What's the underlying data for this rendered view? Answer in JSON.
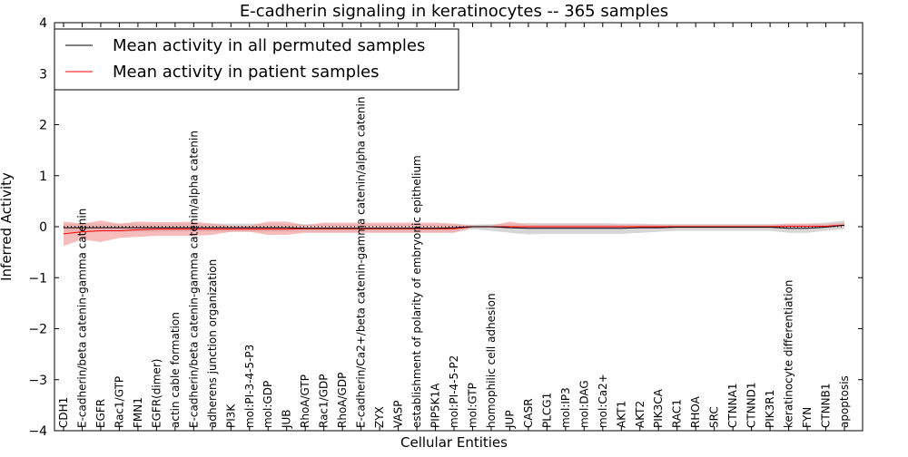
{
  "chart_data": {
    "type": "line",
    "title": "E-cadherin signaling in keratinocytes -- 365 samples",
    "xlabel": "Cellular Entities",
    "ylabel": "Inferred Activity",
    "ylim": [
      -4,
      4
    ],
    "yticks": [
      "−4",
      "−3",
      "−2",
      "−1",
      "0",
      "1",
      "2",
      "3",
      "4"
    ],
    "grid": false,
    "legend_position": "top-left",
    "categories": [
      "CDH1",
      "E-cadherin/beta catenin-gamma catenin",
      "EGFR",
      "Rac1/GTP",
      "FMN1",
      "EGFR(dimer)",
      "actin cable formation",
      "E-cadherin/beta catenin-gamma catenin/alpha catenin",
      "adherens junction organization",
      "PI3K",
      "mol:PI-3-4-5-P3",
      "mol:GDP",
      "JUB",
      "RhoA/GTP",
      "Rac1/GDP",
      "RhoA/GDP",
      "E-cadherin/Ca2+/beta catenin-gamma catenin/alpha catenin",
      "ZYX",
      "VASP",
      "establishment of polarity of embryonic epithelium",
      "PIP5K1A",
      "mol:PI-4-5-P2",
      "mol:GTP",
      "homophilic cell adhesion",
      "JUP",
      "CASR",
      "PLCG1",
      "mol:IP3",
      "mol:DAG",
      "mol:Ca2+",
      "AKT1",
      "AKT2",
      "PIK3CA",
      "RAC1",
      "RHOA",
      "SRC",
      "CTNNA1",
      "CTNND1",
      "PIK3R1",
      "keratinocyte differentiation",
      "FYN",
      "CTNNB1",
      "apoptosis"
    ],
    "series": [
      {
        "name": "Mean activity in all permuted samples",
        "color": "#000000",
        "band_color": "#c8c8c8",
        "values": [
          -0.02,
          -0.02,
          -0.02,
          -0.02,
          -0.02,
          -0.02,
          -0.02,
          -0.02,
          -0.02,
          -0.02,
          -0.02,
          -0.02,
          -0.02,
          -0.03,
          -0.03,
          -0.03,
          -0.03,
          -0.03,
          -0.03,
          -0.03,
          -0.03,
          -0.02,
          0.0,
          0.0,
          -0.02,
          -0.03,
          -0.03,
          -0.03,
          -0.03,
          -0.03,
          -0.03,
          -0.02,
          -0.02,
          -0.01,
          -0.01,
          -0.01,
          -0.01,
          -0.01,
          -0.01,
          -0.03,
          -0.03,
          -0.01,
          0.03
        ],
        "lower": [
          -0.1,
          -0.1,
          -0.1,
          -0.1,
          -0.1,
          -0.1,
          -0.1,
          -0.1,
          -0.1,
          -0.1,
          -0.1,
          -0.1,
          -0.1,
          -0.1,
          -0.1,
          -0.1,
          -0.1,
          -0.1,
          -0.1,
          -0.1,
          -0.1,
          -0.1,
          -0.05,
          -0.08,
          -0.12,
          -0.15,
          -0.14,
          -0.14,
          -0.14,
          -0.14,
          -0.14,
          -0.12,
          -0.1,
          -0.08,
          -0.08,
          -0.08,
          -0.08,
          -0.08,
          -0.08,
          -0.12,
          -0.12,
          -0.08,
          -0.05
        ],
        "upper": [
          0.06,
          0.06,
          0.06,
          0.06,
          0.06,
          0.06,
          0.06,
          0.06,
          0.06,
          0.06,
          0.06,
          0.06,
          0.06,
          0.05,
          0.05,
          0.05,
          0.05,
          0.05,
          0.05,
          0.05,
          0.05,
          0.05,
          0.04,
          0.05,
          0.06,
          0.07,
          0.07,
          0.07,
          0.07,
          0.07,
          0.06,
          0.06,
          0.05,
          0.05,
          0.05,
          0.05,
          0.05,
          0.05,
          0.05,
          0.05,
          0.06,
          0.08,
          0.12
        ]
      },
      {
        "name": "Mean activity in patient samples",
        "color": "#ff0000",
        "band_color": "#f4a0a0",
        "values": [
          -0.14,
          -0.1,
          -0.08,
          -0.08,
          -0.06,
          -0.05,
          -0.05,
          -0.05,
          -0.05,
          -0.05,
          -0.05,
          -0.05,
          -0.05,
          -0.04,
          -0.04,
          -0.04,
          -0.04,
          -0.04,
          -0.04,
          -0.04,
          -0.04,
          -0.04,
          0.0,
          0.0,
          0.0,
          0.0,
          0.0,
          0.0,
          0.0,
          0.0,
          0.0,
          0.0,
          0.0,
          0.0,
          0.0,
          0.0,
          0.0,
          0.0,
          0.0,
          0.01,
          0.01,
          0.01,
          0.03
        ],
        "lower": [
          -0.38,
          -0.25,
          -0.3,
          -0.22,
          -0.2,
          -0.18,
          -0.18,
          -0.18,
          -0.16,
          -0.1,
          -0.1,
          -0.16,
          -0.16,
          -0.12,
          -0.12,
          -0.12,
          -0.12,
          -0.12,
          -0.12,
          -0.12,
          -0.12,
          -0.12,
          -0.02,
          -0.02,
          -0.03,
          -0.03,
          -0.03,
          -0.03,
          -0.03,
          -0.03,
          -0.03,
          -0.03,
          -0.03,
          -0.03,
          -0.03,
          -0.03,
          -0.03,
          -0.03,
          -0.03,
          -0.02,
          -0.02,
          -0.02,
          0.0
        ],
        "upper": [
          0.1,
          0.06,
          0.12,
          0.06,
          0.1,
          0.09,
          0.09,
          0.1,
          0.06,
          0.02,
          0.02,
          0.1,
          0.1,
          0.03,
          0.08,
          0.08,
          0.08,
          0.08,
          0.08,
          0.08,
          0.08,
          0.06,
          0.02,
          0.02,
          0.1,
          0.04,
          0.04,
          0.04,
          0.04,
          0.04,
          0.04,
          0.04,
          0.04,
          0.04,
          0.04,
          0.04,
          0.04,
          0.04,
          0.04,
          0.06,
          0.06,
          0.05,
          0.08
        ]
      }
    ],
    "reference_line": 0
  }
}
